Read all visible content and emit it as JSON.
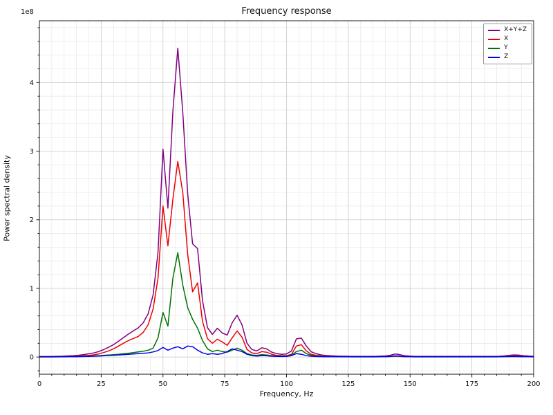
{
  "chart_data": {
    "type": "line",
    "title": "Frequency response",
    "xlabel": "Frequency, Hz",
    "ylabel": "Power spectral density",
    "y_offset_text": "1e8",
    "values_unit": "1e8",
    "xlim": [
      0,
      200
    ],
    "ylim": [
      -0.25,
      4.9
    ],
    "xticks": [
      0,
      25,
      50,
      75,
      100,
      125,
      150,
      175,
      200
    ],
    "yticks": [
      0,
      1,
      2,
      3,
      4
    ],
    "grid": "major+minor",
    "legend_position": "upper right",
    "x": [
      0,
      2,
      4,
      6,
      8,
      10,
      12,
      14,
      16,
      18,
      20,
      22,
      24,
      26,
      28,
      30,
      32,
      34,
      36,
      38,
      40,
      42,
      44,
      46,
      48,
      50,
      52,
      54,
      56,
      58,
      60,
      62,
      64,
      66,
      68,
      70,
      72,
      74,
      76,
      78,
      80,
      82,
      84,
      86,
      88,
      90,
      92,
      94,
      96,
      98,
      100,
      102,
      104,
      106,
      108,
      110,
      112,
      114,
      116,
      118,
      120,
      122,
      124,
      126,
      128,
      130,
      132,
      134,
      136,
      138,
      140,
      142,
      144,
      146,
      148,
      150,
      152,
      154,
      156,
      158,
      160,
      162,
      164,
      166,
      168,
      170,
      172,
      174,
      176,
      178,
      180,
      182,
      184,
      186,
      188,
      190,
      192,
      194,
      196,
      198,
      200
    ],
    "series": [
      {
        "name": "X+Y+Z",
        "color": "#800080",
        "values": [
          0.008,
          0.008,
          0.008,
          0.01,
          0.011,
          0.013,
          0.017,
          0.021,
          0.027,
          0.036,
          0.047,
          0.06,
          0.08,
          0.108,
          0.142,
          0.181,
          0.23,
          0.283,
          0.335,
          0.38,
          0.425,
          0.5,
          0.63,
          0.905,
          1.525,
          3.03,
          2.17,
          3.58,
          4.5,
          3.57,
          2.38,
          1.65,
          1.58,
          0.82,
          0.43,
          0.33,
          0.42,
          0.35,
          0.32,
          0.5,
          0.61,
          0.47,
          0.2,
          0.11,
          0.09,
          0.135,
          0.118,
          0.072,
          0.05,
          0.04,
          0.045,
          0.09,
          0.265,
          0.275,
          0.16,
          0.077,
          0.048,
          0.031,
          0.023,
          0.018,
          0.015,
          0.012,
          0.012,
          0.01,
          0.01,
          0.01,
          0.01,
          0.01,
          0.01,
          0.013,
          0.016,
          0.026,
          0.045,
          0.034,
          0.018,
          0.013,
          0.01,
          0.01,
          0.01,
          0.01,
          0.01,
          0.01,
          0.01,
          0.01,
          0.01,
          0.01,
          0.01,
          0.01,
          0.01,
          0.01,
          0.01,
          0.01,
          0.01,
          0.011,
          0.016,
          0.024,
          0.031,
          0.028,
          0.02,
          0.014,
          0.011
        ]
      },
      {
        "name": "X",
        "color": "#ee0000",
        "values": [
          0.004,
          0.004,
          0.004,
          0.005,
          0.005,
          0.006,
          0.008,
          0.01,
          0.013,
          0.018,
          0.024,
          0.032,
          0.045,
          0.065,
          0.09,
          0.12,
          0.16,
          0.2,
          0.24,
          0.27,
          0.3,
          0.36,
          0.47,
          0.7,
          1.15,
          2.2,
          1.62,
          2.3,
          2.85,
          2.4,
          1.5,
          0.95,
          1.08,
          0.52,
          0.27,
          0.2,
          0.26,
          0.22,
          0.17,
          0.28,
          0.38,
          0.29,
          0.11,
          0.06,
          0.05,
          0.08,
          0.07,
          0.04,
          0.025,
          0.02,
          0.02,
          0.04,
          0.16,
          0.18,
          0.09,
          0.04,
          0.025,
          0.015,
          0.01,
          0.008,
          0.006,
          0.005,
          0.005,
          0.004,
          0.004,
          0.004,
          0.004,
          0.004,
          0.004,
          0.005,
          0.006,
          0.008,
          0.012,
          0.01,
          0.006,
          0.005,
          0.004,
          0.004,
          0.004,
          0.004,
          0.004,
          0.004,
          0.004,
          0.004,
          0.004,
          0.004,
          0.004,
          0.004,
          0.004,
          0.004,
          0.004,
          0.004,
          0.004,
          0.005,
          0.008,
          0.012,
          0.015,
          0.014,
          0.01,
          0.006,
          0.005
        ]
      },
      {
        "name": "Y",
        "color": "#007000",
        "values": [
          0.002,
          0.002,
          0.002,
          0.003,
          0.003,
          0.004,
          0.005,
          0.006,
          0.008,
          0.01,
          0.013,
          0.016,
          0.02,
          0.025,
          0.03,
          0.035,
          0.04,
          0.048,
          0.055,
          0.065,
          0.075,
          0.085,
          0.1,
          0.13,
          0.28,
          0.65,
          0.45,
          1.15,
          1.52,
          1.05,
          0.72,
          0.55,
          0.42,
          0.24,
          0.12,
          0.08,
          0.1,
          0.08,
          0.07,
          0.1,
          0.13,
          0.1,
          0.05,
          0.03,
          0.025,
          0.035,
          0.03,
          0.02,
          0.015,
          0.012,
          0.015,
          0.03,
          0.08,
          0.1,
          0.05,
          0.025,
          0.015,
          0.01,
          0.008,
          0.006,
          0.005,
          0.004,
          0.004,
          0.003,
          0.003,
          0.003,
          0.003,
          0.003,
          0.003,
          0.004,
          0.005,
          0.008,
          0.015,
          0.012,
          0.006,
          0.004,
          0.003,
          0.003,
          0.003,
          0.003,
          0.003,
          0.003,
          0.003,
          0.003,
          0.003,
          0.003,
          0.003,
          0.003,
          0.003,
          0.003,
          0.003,
          0.003,
          0.003,
          0.003,
          0.004,
          0.006,
          0.008,
          0.007,
          0.005,
          0.004,
          0.003
        ]
      },
      {
        "name": "Z",
        "color": "#0000ee",
        "values": [
          0.002,
          0.002,
          0.002,
          0.002,
          0.003,
          0.003,
          0.004,
          0.005,
          0.006,
          0.008,
          0.01,
          0.012,
          0.015,
          0.018,
          0.022,
          0.026,
          0.03,
          0.035,
          0.04,
          0.045,
          0.05,
          0.055,
          0.06,
          0.075,
          0.095,
          0.14,
          0.1,
          0.13,
          0.15,
          0.12,
          0.16,
          0.15,
          0.1,
          0.06,
          0.04,
          0.05,
          0.04,
          0.05,
          0.08,
          0.12,
          0.1,
          0.08,
          0.04,
          0.02,
          0.015,
          0.02,
          0.018,
          0.012,
          0.01,
          0.008,
          0.01,
          0.02,
          0.05,
          0.04,
          0.02,
          0.012,
          0.008,
          0.006,
          0.005,
          0.004,
          0.004,
          0.003,
          0.003,
          0.003,
          0.003,
          0.003,
          0.003,
          0.003,
          0.003,
          0.004,
          0.005,
          0.01,
          0.018,
          0.012,
          0.006,
          0.004,
          0.003,
          0.003,
          0.003,
          0.003,
          0.003,
          0.003,
          0.003,
          0.003,
          0.003,
          0.003,
          0.003,
          0.003,
          0.003,
          0.003,
          0.003,
          0.003,
          0.003,
          0.004,
          0.006,
          0.008,
          0.008,
          0.007,
          0.005,
          0.004,
          0.003
        ]
      }
    ]
  }
}
